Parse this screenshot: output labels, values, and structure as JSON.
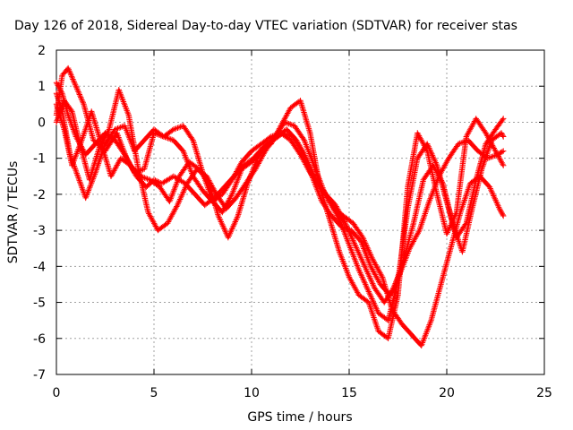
{
  "chart_data": {
    "type": "scatter",
    "title": "Day 126 of 2018, Sidereal Day-to-day VTEC variation (SDTVAR) for receiver stas",
    "xlabel": "GPS time / hours",
    "ylabel": "SDTVAR / TECUs",
    "xlim": [
      0,
      25
    ],
    "ylim": [
      -7,
      2
    ],
    "xticks": [
      0,
      5,
      10,
      15,
      20,
      25
    ],
    "yticks": [
      -7,
      -6,
      -5,
      -4,
      -3,
      -2,
      -1,
      0,
      1,
      2
    ],
    "grid": true,
    "marker": "+",
    "color": "#ff0000",
    "series": [
      {
        "name": "trace-1",
        "x": [
          0,
          0.3,
          0.6,
          1.0,
          1.4,
          1.9,
          2.5,
          3.1,
          3.6,
          4.1,
          4.6,
          5.0,
          5.4,
          6.0,
          6.6,
          7.1,
          7.6,
          8.1,
          8.6,
          9.1,
          9.6,
          10.1,
          10.6,
          11.1,
          11.6,
          12.1,
          12.6,
          13.1,
          13.6,
          14.1,
          14.6,
          15.1,
          15.6,
          16.1,
          16.6,
          17.1,
          17.6,
          18.1,
          18.6,
          19.1,
          19.6,
          20.1,
          20.6,
          21.1,
          21.6,
          22.1,
          22.6,
          22.9
        ],
        "y": [
          0.2,
          1.3,
          1.5,
          1.0,
          0.5,
          -0.5,
          -0.8,
          -0.3,
          -1.0,
          -1.5,
          -1.8,
          -1.6,
          -1.7,
          -1.5,
          -1.7,
          -2.0,
          -2.3,
          -2.1,
          -1.8,
          -1.5,
          -1.2,
          -1.0,
          -0.7,
          -0.5,
          -0.3,
          -0.4,
          -0.8,
          -1.5,
          -2.2,
          -2.6,
          -2.9,
          -3.0,
          -3.3,
          -4.0,
          -4.5,
          -4.8,
          -4.2,
          -3.5,
          -3.0,
          -2.2,
          -1.5,
          -1.0,
          -0.6,
          -0.5,
          -0.8,
          -1.0,
          -0.9,
          -0.8
        ]
      },
      {
        "name": "trace-2",
        "x": [
          0,
          0.4,
          0.8,
          1.2,
          1.7,
          2.2,
          2.7,
          3.2,
          3.7,
          4.2,
          4.7,
          5.2,
          5.7,
          6.2,
          6.7,
          7.2,
          7.7,
          8.2,
          8.7,
          9.2,
          9.7,
          10.2,
          10.7,
          11.2,
          11.7,
          12.2,
          12.7,
          13.2,
          13.7,
          14.2,
          14.7,
          15.2,
          15.7,
          16.2,
          16.7,
          17.2,
          17.7,
          18.2,
          18.7,
          19.2,
          19.7,
          20.2,
          20.7,
          21.2,
          21.7,
          22.2,
          22.7,
          22.9
        ],
        "y": [
          0,
          0.6,
          0.3,
          -0.6,
          -1.6,
          -0.7,
          -0.2,
          0.9,
          0.2,
          -1.3,
          -2.5,
          -3.0,
          -2.8,
          -2.3,
          -1.7,
          -1.3,
          -1.5,
          -2.0,
          -2.4,
          -2.1,
          -1.7,
          -1.3,
          -0.8,
          -0.4,
          0,
          -0.1,
          -0.5,
          -1.2,
          -1.9,
          -2.4,
          -2.6,
          -2.8,
          -3.2,
          -3.8,
          -4.3,
          -5.2,
          -5.6,
          -5.9,
          -6.2,
          -5.5,
          -4.5,
          -3.5,
          -2.5,
          -1.7,
          -1.5,
          -1.8,
          -2.4,
          -2.6
        ]
      },
      {
        "name": "trace-3",
        "x": [
          0,
          0.3,
          0.7,
          1.1,
          1.5,
          2.0,
          2.5,
          3.0,
          3.5,
          4.0,
          4.5,
          5.0,
          5.5,
          6.0,
          6.5,
          7.0,
          7.5,
          8.0,
          8.5,
          9.0,
          9.5,
          10.0,
          10.5,
          11.0,
          11.5,
          12.0,
          12.5,
          13.0,
          13.5,
          14.0,
          14.5,
          15.0,
          15.5,
          16.0,
          16.5,
          17.0,
          17.5,
          18.0,
          18.5,
          19.0,
          19.5,
          20.0,
          20.5,
          21.0,
          21.5,
          22.0,
          22.5,
          22.9
        ],
        "y": [
          0.8,
          0.3,
          -0.9,
          -1.5,
          -2.1,
          -1.4,
          -0.6,
          -0.2,
          -0.1,
          -0.8,
          -0.5,
          -0.2,
          -0.4,
          -0.2,
          -0.1,
          -0.5,
          -1.4,
          -2.2,
          -2.5,
          -2.0,
          -1.3,
          -1.1,
          -0.8,
          -0.6,
          -0.1,
          0.4,
          0.6,
          -0.3,
          -1.8,
          -2.7,
          -3.6,
          -4.3,
          -4.8,
          -5.0,
          -5.8,
          -6.0,
          -4.8,
          -1.8,
          -0.3,
          -0.8,
          -2.0,
          -3.1,
          -2.5,
          -0.4,
          0.1,
          -0.3,
          -0.8,
          -1.2
        ]
      },
      {
        "name": "trace-4",
        "x": [
          0,
          0.4,
          0.8,
          1.3,
          1.8,
          2.3,
          2.8,
          3.3,
          3.8,
          4.3,
          4.8,
          5.3,
          5.8,
          6.3,
          6.8,
          7.3,
          7.8,
          8.3,
          8.8,
          9.3,
          9.8,
          10.3,
          10.8,
          11.3,
          11.8,
          12.3,
          12.8,
          13.3,
          13.8,
          14.3,
          14.8,
          15.3,
          15.8,
          16.3,
          16.8,
          17.3,
          17.8,
          18.3,
          18.8,
          19.3,
          19.8,
          20.3,
          20.8,
          21.3,
          21.8,
          22.3,
          22.8,
          22.9
        ],
        "y": [
          0.5,
          -0.2,
          -1.2,
          -0.5,
          0.3,
          -0.6,
          -1.5,
          -1.0,
          -1.2,
          -1.5,
          -1.6,
          -1.8,
          -2.2,
          -1.5,
          -1.1,
          -1.3,
          -1.7,
          -2.6,
          -3.2,
          -2.6,
          -1.7,
          -1.0,
          -0.6,
          -0.4,
          -0.2,
          -0.5,
          -1.0,
          -1.6,
          -2.0,
          -2.3,
          -2.8,
          -3.4,
          -4.0,
          -4.6,
          -5.0,
          -4.6,
          -3.8,
          -2.8,
          -1.6,
          -1.2,
          -1.7,
          -2.8,
          -3.6,
          -2.4,
          -1.3,
          -0.5,
          -0.3,
          -0.4
        ]
      },
      {
        "name": "trace-5",
        "x": [
          0,
          0.3,
          0.6,
          1.0,
          1.5,
          2.0,
          2.5,
          3.0,
          3.5,
          4.0,
          4.5,
          5.0,
          5.5,
          6.0,
          6.5,
          7.0,
          7.5,
          8.0,
          8.5,
          9.0,
          9.5,
          10.0,
          10.5,
          11.0,
          11.5,
          12.0,
          12.5,
          13.0,
          13.5,
          14.0,
          14.5,
          15.0,
          15.5,
          16.0,
          16.5,
          17.0,
          17.5,
          18.0,
          18.5,
          19.0,
          19.5,
          20.0,
          20.5,
          21.0,
          21.5,
          22.0,
          22.5,
          22.9
        ],
        "y": [
          1.1,
          0.8,
          0.2,
          -0.4,
          -0.9,
          -0.6,
          -0.3,
          -0.5,
          -0.9,
          -1.4,
          -1.3,
          -0.3,
          -0.4,
          -0.5,
          -0.8,
          -1.5,
          -1.9,
          -2.2,
          -2.0,
          -1.6,
          -1.1,
          -0.8,
          -0.6,
          -0.4,
          -0.3,
          -0.5,
          -0.9,
          -1.4,
          -1.8,
          -2.2,
          -2.7,
          -3.4,
          -4.1,
          -4.7,
          -5.3,
          -5.5,
          -4.4,
          -2.4,
          -1.0,
          -0.6,
          -1.2,
          -2.2,
          -3.2,
          -2.8,
          -1.6,
          -0.6,
          -0.2,
          0.1
        ]
      }
    ]
  }
}
